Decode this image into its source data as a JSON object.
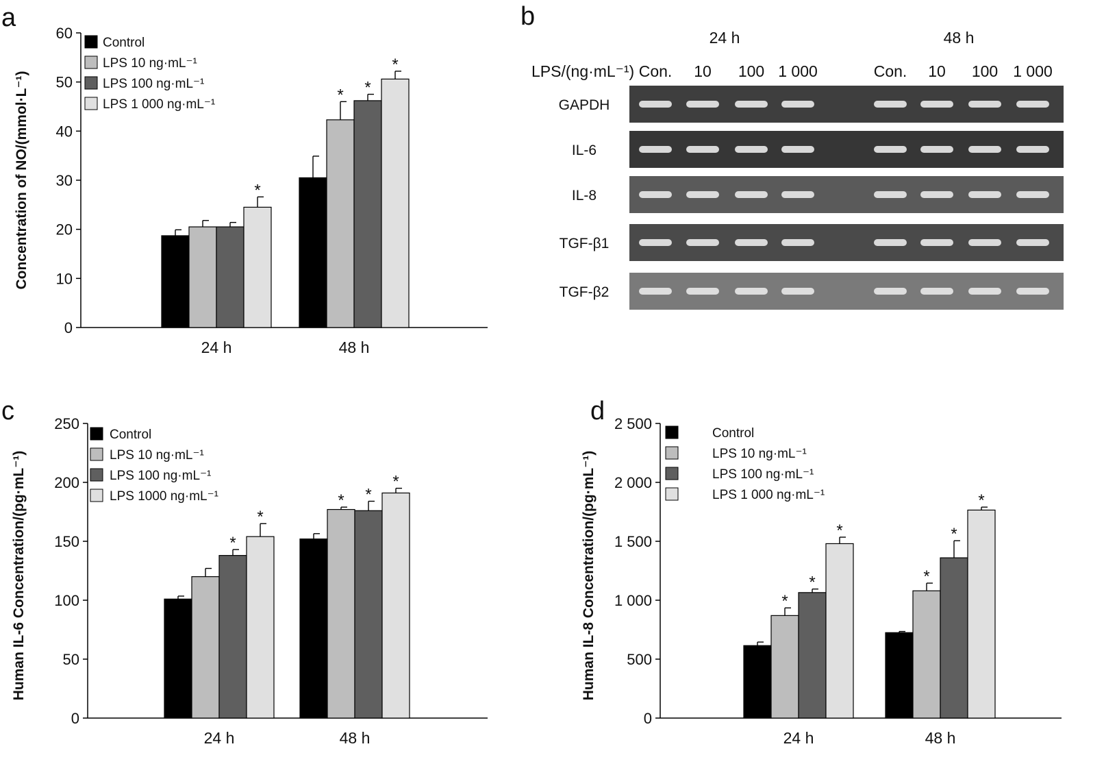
{
  "panels": [
    {
      "letter": "a",
      "chart_data": {
        "type": "bar",
        "title": "",
        "xlabel": "",
        "ylabel": "Concentration of NO/(mmol·L⁻¹)",
        "ylim": [
          0,
          60
        ],
        "yticks": [
          "0",
          "10",
          "20",
          "30",
          "40",
          "50",
          "60"
        ],
        "categories": [
          "24 h",
          "48 h"
        ],
        "legend_position": "top-left",
        "series": [
          {
            "name": "Control",
            "color": "#000000",
            "values": [
              18.7,
              30.5
            ],
            "errors": [
              1.2,
              4.4
            ],
            "significant": [
              false,
              false
            ]
          },
          {
            "name": "LPS 10 ng·mL⁻¹",
            "color": "#bdbdbd",
            "values": [
              20.5,
              42.3
            ],
            "errors": [
              1.3,
              3.7
            ],
            "significant": [
              false,
              true
            ]
          },
          {
            "name": "LPS 100 ng·mL⁻¹",
            "color": "#5f5f5f",
            "values": [
              20.5,
              46.2
            ],
            "errors": [
              0.9,
              1.3
            ],
            "significant": [
              false,
              true
            ]
          },
          {
            "name": "LPS 1 000 ng·mL⁻¹",
            "color": "#e0e0e0",
            "values": [
              24.5,
              50.6
            ],
            "errors": [
              2.1,
              1.6
            ],
            "significant": [
              true,
              true
            ]
          }
        ]
      }
    },
    {
      "letter": "c",
      "chart_data": {
        "type": "bar",
        "title": "",
        "xlabel": "",
        "ylabel": "Human IL-6 Concentration/(pg·mL⁻¹)",
        "ylim": [
          0,
          250
        ],
        "yticks": [
          "0",
          "50",
          "100",
          "150",
          "200",
          "250"
        ],
        "categories": [
          "24 h",
          "48 h"
        ],
        "legend_position": "top-left",
        "series": [
          {
            "name": "Control",
            "color": "#000000",
            "values": [
              101,
              152
            ],
            "errors": [
              2.5,
              4.5
            ],
            "significant": [
              false,
              false
            ]
          },
          {
            "name": "LPS 10 ng·mL⁻¹",
            "color": "#bdbdbd",
            "values": [
              120,
              177
            ],
            "errors": [
              7,
              2
            ],
            "significant": [
              false,
              true
            ]
          },
          {
            "name": "LPS 100 ng·mL⁻¹",
            "color": "#5f5f5f",
            "values": [
              138,
              176
            ],
            "errors": [
              5,
              8
            ],
            "significant": [
              true,
              true
            ]
          },
          {
            "name": "LPS 1000 ng·mL⁻¹",
            "color": "#e0e0e0",
            "values": [
              154,
              191
            ],
            "errors": [
              11,
              4
            ],
            "significant": [
              true,
              true
            ]
          }
        ]
      }
    },
    {
      "letter": "d",
      "chart_data": {
        "type": "bar",
        "title": "",
        "xlabel": "",
        "ylabel": "Human IL-8 Concentration/(pg·mL⁻¹)",
        "ylim": [
          0,
          2500
        ],
        "yticks": [
          "0",
          "500",
          "1 000",
          "1 500",
          "2 000",
          "2 500"
        ],
        "categories": [
          "24 h",
          "48 h"
        ],
        "legend_position": "top-left",
        "series": [
          {
            "name": "Control",
            "color": "#000000",
            "values": [
              615,
              725
            ],
            "errors": [
              30,
              10
            ],
            "significant": [
              false,
              false
            ]
          },
          {
            "name": "LPS 10 ng·mL⁻¹",
            "color": "#bdbdbd",
            "values": [
              870,
              1080
            ],
            "errors": [
              65,
              65
            ],
            "significant": [
              true,
              true
            ]
          },
          {
            "name": "LPS 100 ng·mL⁻¹",
            "color": "#5f5f5f",
            "values": [
              1065,
              1360
            ],
            "errors": [
              30,
              145
            ],
            "significant": [
              true,
              true
            ]
          },
          {
            "name": "LPS 1 000 ng·mL⁻¹",
            "color": "#e0e0e0",
            "values": [
              1480,
              1765
            ],
            "errors": [
              55,
              25
            ],
            "significant": [
              true,
              true
            ]
          }
        ]
      }
    }
  ],
  "gel": {
    "letter": "b",
    "row_header": "LPS/(ng·mL⁻¹)",
    "time_groups": [
      "24 h",
      "48 h"
    ],
    "lanes": [
      "Con.",
      "10",
      "100",
      "1 000",
      "Con.",
      "10",
      "100",
      "1 000"
    ],
    "genes": [
      {
        "name": "GAPDH",
        "background": "#3e3e3e"
      },
      {
        "name": "IL-6",
        "background": "#363636"
      },
      {
        "name": "IL-8",
        "background": "#5a5a5a"
      },
      {
        "name": "TGF-β1",
        "background": "#4a4a4a"
      },
      {
        "name": "TGF-β2",
        "background": "#7a7a7a"
      }
    ],
    "significance_marker": "*"
  }
}
